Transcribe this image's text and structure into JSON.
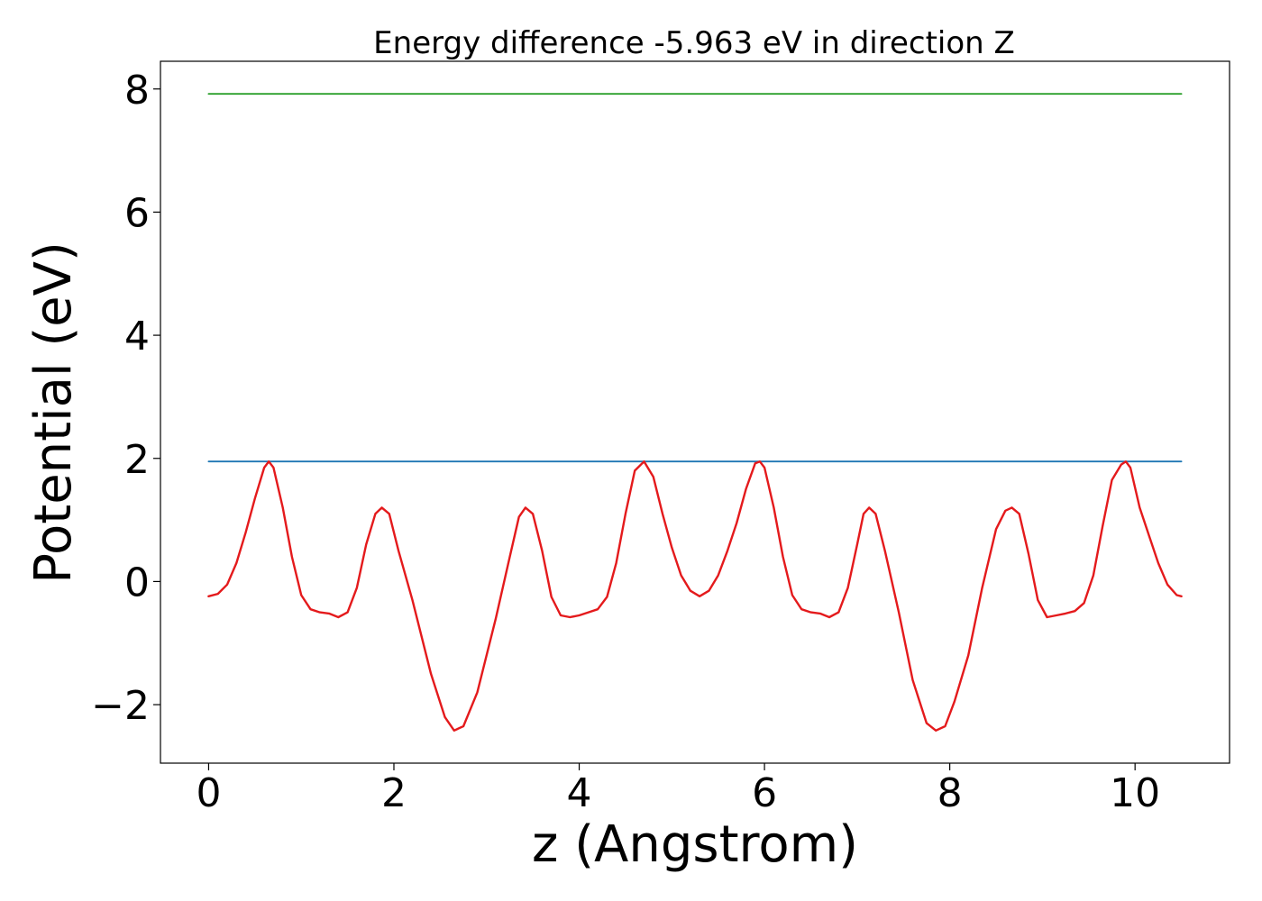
{
  "chart_data": {
    "type": "line",
    "title": "Energy difference -5.963 eV in direction Z",
    "xlabel": "z (Angstrom)",
    "ylabel": "Potential (eV)",
    "xlim": [
      -0.52,
      11.02
    ],
    "ylim": [
      -2.95,
      8.45
    ],
    "xticks": [
      0,
      2,
      4,
      6,
      8,
      10
    ],
    "yticks": [
      -2,
      0,
      2,
      4,
      6,
      8
    ],
    "xtick_labels": [
      "0",
      "2",
      "4",
      "6",
      "8",
      "10"
    ],
    "ytick_labels": [
      "−2",
      "0",
      "2",
      "4",
      "6",
      "8"
    ],
    "grid": false,
    "legend": "none",
    "series": [
      {
        "color": "#2ca02c",
        "x": [
          0,
          10.5
        ],
        "y": [
          7.92,
          7.92
        ]
      },
      {
        "color": "#1f77b4",
        "x": [
          0,
          10.5
        ],
        "y": [
          1.95,
          1.95
        ]
      },
      {
        "color": "#e41a1c",
        "x": [
          0.0,
          0.1,
          0.2,
          0.3,
          0.4,
          0.5,
          0.6,
          0.65,
          0.7,
          0.8,
          0.9,
          1.0,
          1.1,
          1.2,
          1.3,
          1.4,
          1.5,
          1.6,
          1.7,
          1.8,
          1.87,
          1.95,
          2.05,
          2.2,
          2.4,
          2.55,
          2.65,
          2.75,
          2.9,
          3.1,
          3.25,
          3.35,
          3.42,
          3.5,
          3.6,
          3.7,
          3.8,
          3.9,
          4.0,
          4.1,
          4.2,
          4.3,
          4.4,
          4.5,
          4.6,
          4.7,
          4.8,
          4.9,
          5.0,
          5.1,
          5.2,
          5.3,
          5.4,
          5.5,
          5.6,
          5.7,
          5.8,
          5.9,
          5.95,
          6.0,
          6.1,
          6.2,
          6.3,
          6.4,
          6.5,
          6.6,
          6.7,
          6.8,
          6.9,
          7.0,
          7.07,
          7.13,
          7.2,
          7.3,
          7.45,
          7.6,
          7.75,
          7.85,
          7.95,
          8.05,
          8.2,
          8.35,
          8.5,
          8.6,
          8.67,
          8.75,
          8.85,
          8.95,
          9.05,
          9.15,
          9.25,
          9.35,
          9.45,
          9.55,
          9.65,
          9.75,
          9.85,
          9.9,
          9.95,
          10.05,
          10.15,
          10.25,
          10.35,
          10.45,
          10.5
        ],
        "y": [
          -0.24,
          -0.2,
          -0.05,
          0.3,
          0.8,
          1.35,
          1.85,
          1.95,
          1.85,
          1.2,
          0.4,
          -0.22,
          -0.45,
          -0.5,
          -0.52,
          -0.58,
          -0.5,
          -0.1,
          0.6,
          1.1,
          1.2,
          1.1,
          0.5,
          -0.3,
          -1.5,
          -2.2,
          -2.42,
          -2.35,
          -1.8,
          -0.6,
          0.4,
          1.05,
          1.2,
          1.1,
          0.5,
          -0.25,
          -0.55,
          -0.58,
          -0.55,
          -0.5,
          -0.45,
          -0.25,
          0.3,
          1.1,
          1.8,
          1.95,
          1.7,
          1.1,
          0.55,
          0.1,
          -0.15,
          -0.24,
          -0.15,
          0.1,
          0.5,
          0.95,
          1.5,
          1.92,
          1.95,
          1.85,
          1.2,
          0.4,
          -0.22,
          -0.45,
          -0.5,
          -0.52,
          -0.58,
          -0.5,
          -0.1,
          0.6,
          1.1,
          1.2,
          1.1,
          0.5,
          -0.5,
          -1.6,
          -2.3,
          -2.42,
          -2.35,
          -1.95,
          -1.2,
          -0.1,
          0.85,
          1.15,
          1.2,
          1.1,
          0.45,
          -0.3,
          -0.58,
          -0.55,
          -0.52,
          -0.48,
          -0.35,
          0.1,
          0.9,
          1.65,
          1.9,
          1.95,
          1.85,
          1.2,
          0.75,
          0.3,
          -0.05,
          -0.22,
          -0.24
        ]
      }
    ]
  }
}
